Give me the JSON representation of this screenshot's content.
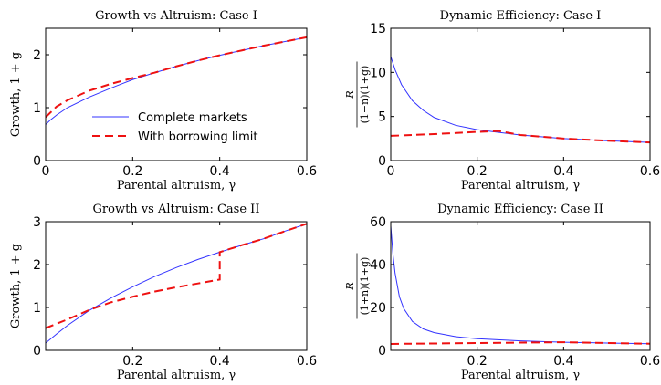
{
  "colors": {
    "complete": "#3333ff",
    "limit": "#ee1111",
    "axis": "#000000"
  },
  "chart_data": [
    {
      "type": "line",
      "title": "Growth vs Altruism: Case I",
      "xlabel": "Parental altruism, γ",
      "ylabel": "Growth, 1 + g",
      "xlim": [
        0,
        0.6
      ],
      "ylim": [
        0,
        2.5
      ],
      "xticks": [
        0,
        0.2,
        0.4,
        0.6
      ],
      "xtick_labels": [
        "0",
        "0.2",
        "0.4",
        "0.6"
      ],
      "yticks": [
        0,
        1,
        2
      ],
      "ytick_labels": [
        "0",
        "1",
        "2"
      ],
      "grid": false,
      "legend": {
        "placement": "lower-right",
        "entries": [
          "Complete markets",
          "With borrowing limit"
        ]
      },
      "series": [
        {
          "name": "Complete markets",
          "style": "solid",
          "color": "#3333ff",
          "x": [
            0,
            0.01,
            0.025,
            0.05,
            0.1,
            0.15,
            0.2,
            0.25,
            0.3,
            0.35,
            0.4,
            0.45,
            0.5,
            0.55,
            0.6
          ],
          "y": [
            0.68,
            0.76,
            0.86,
            1.0,
            1.2,
            1.37,
            1.53,
            1.66,
            1.78,
            1.89,
            1.99,
            2.08,
            2.17,
            2.25,
            2.33
          ]
        },
        {
          "name": "With borrowing limit",
          "style": "dashed",
          "color": "#ee1111",
          "x": [
            0,
            0.01,
            0.025,
            0.05,
            0.1,
            0.15,
            0.2,
            0.25,
            0.3,
            0.35,
            0.4,
            0.45,
            0.5,
            0.55,
            0.6
          ],
          "y": [
            0.82,
            0.9,
            1.02,
            1.14,
            1.32,
            1.45,
            1.56,
            1.66,
            1.78,
            1.89,
            1.99,
            2.08,
            2.17,
            2.25,
            2.33
          ]
        }
      ]
    },
    {
      "type": "line",
      "title": "Dynamic Efficiency: Case I",
      "xlabel": "Parental altruism, γ",
      "ylabel": "R / (1+n)(1+g)",
      "ylabel_num": "R",
      "ylabel_den": "(1+n)(1+g)",
      "xlim": [
        0,
        0.6
      ],
      "ylim": [
        0,
        15
      ],
      "xticks": [
        0,
        0.2,
        0.4,
        0.6
      ],
      "xtick_labels": [
        "0",
        "0.2",
        "0.4",
        "0.6"
      ],
      "yticks": [
        0,
        5,
        10,
        15
      ],
      "ytick_labels": [
        "0",
        "5",
        "10",
        "15"
      ],
      "grid": false,
      "series": [
        {
          "name": "Complete markets",
          "style": "solid",
          "color": "#3333ff",
          "x": [
            0,
            0.01,
            0.025,
            0.05,
            0.075,
            0.1,
            0.15,
            0.2,
            0.25,
            0.3,
            0.4,
            0.5,
            0.6
          ],
          "y": [
            11.8,
            10.3,
            8.6,
            6.8,
            5.7,
            4.9,
            4.0,
            3.5,
            3.2,
            2.9,
            2.5,
            2.25,
            2.05
          ]
        },
        {
          "name": "With borrowing limit",
          "style": "dashed",
          "color": "#ee1111",
          "x": [
            0,
            0.1,
            0.2,
            0.25,
            0.3,
            0.4,
            0.5,
            0.6
          ],
          "y": [
            2.8,
            3.0,
            3.25,
            3.35,
            2.9,
            2.5,
            2.25,
            2.05
          ]
        }
      ]
    },
    {
      "type": "line",
      "title": "Growth vs Altruism: Case II",
      "xlabel": "Parental altruism, γ",
      "ylabel": "Growth, 1 + g",
      "xlim": [
        0,
        0.6
      ],
      "ylim": [
        0,
        3
      ],
      "xticks": [
        0.2,
        0.4,
        0.6
      ],
      "xtick_labels": [
        "0.2",
        "0.4",
        "0.6"
      ],
      "yticks": [
        0,
        1,
        2,
        3
      ],
      "ytick_labels": [
        "0",
        "1",
        "2",
        "3"
      ],
      "grid": false,
      "series": [
        {
          "name": "Complete markets",
          "style": "solid",
          "color": "#3333ff",
          "x": [
            0,
            0.025,
            0.05,
            0.1,
            0.15,
            0.2,
            0.25,
            0.3,
            0.35,
            0.4,
            0.45,
            0.5,
            0.55,
            0.6
          ],
          "y": [
            0.17,
            0.38,
            0.58,
            0.93,
            1.22,
            1.48,
            1.72,
            1.93,
            2.12,
            2.29,
            2.45,
            2.6,
            2.78,
            2.95
          ]
        },
        {
          "name": "With borrowing limit",
          "style": "dashed",
          "color": "#ee1111",
          "x": [
            0,
            0.05,
            0.1,
            0.15,
            0.2,
            0.25,
            0.3,
            0.35,
            0.4,
            0.4,
            0.45,
            0.5,
            0.55,
            0.6
          ],
          "y": [
            0.52,
            0.72,
            0.94,
            1.12,
            1.25,
            1.37,
            1.47,
            1.56,
            1.65,
            2.29,
            2.45,
            2.6,
            2.78,
            2.95
          ]
        }
      ]
    },
    {
      "type": "line",
      "title": "Dynamic Efficiency: Case II",
      "xlabel": "Parental altruism, γ",
      "ylabel": "R / (1+n)(1+g)",
      "ylabel_num": "R",
      "ylabel_den": "(1+n)(1+g)",
      "xlim": [
        0,
        0.6
      ],
      "ylim": [
        0,
        60
      ],
      "xticks": [
        0.2,
        0.4,
        0.6
      ],
      "xtick_labels": [
        "0.2",
        "0.4",
        "0.6"
      ],
      "yticks": [
        0,
        20,
        40,
        60
      ],
      "ytick_labels": [
        "0",
        "20",
        "40",
        "60"
      ],
      "grid": false,
      "series": [
        {
          "name": "Complete markets",
          "style": "solid",
          "color": "#3333ff",
          "x": [
            0,
            0.005,
            0.01,
            0.02,
            0.03,
            0.05,
            0.075,
            0.1,
            0.15,
            0.2,
            0.3,
            0.4,
            0.5,
            0.6
          ],
          "y": [
            58,
            45,
            36,
            25,
            19.5,
            13.5,
            10,
            8.3,
            6.4,
            5.4,
            4.4,
            3.8,
            3.4,
            3.1
          ]
        },
        {
          "name": "With borrowing limit",
          "style": "dashed",
          "color": "#ee1111",
          "x": [
            0,
            0.1,
            0.2,
            0.3,
            0.4,
            0.5,
            0.6
          ],
          "y": [
            3.0,
            3.2,
            3.4,
            3.6,
            3.8,
            3.4,
            3.1
          ]
        }
      ]
    }
  ]
}
